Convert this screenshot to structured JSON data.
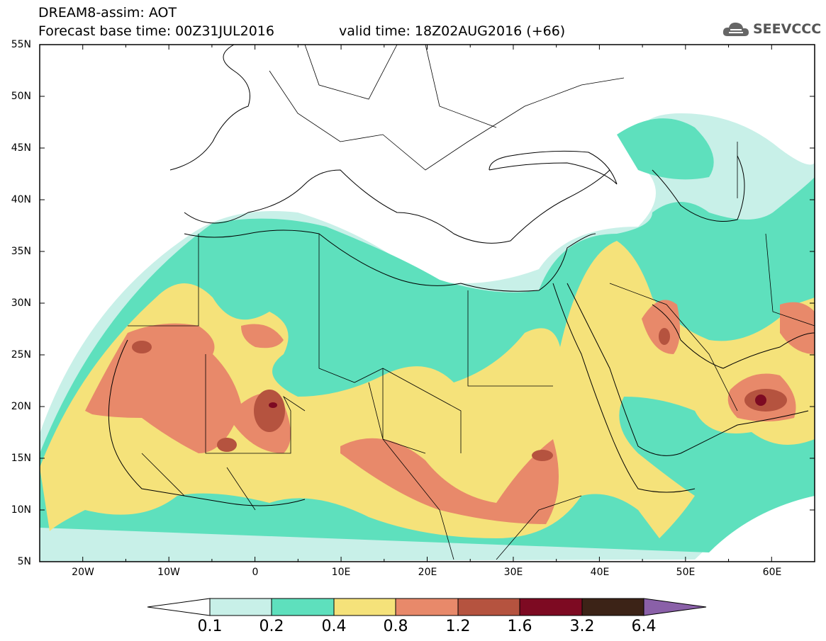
{
  "title_line1": "DREAM8-assim: AOT",
  "title_line2": "Forecast base time: 00Z31JUL2016",
  "title_valid": "valid time: 18Z02AUG2016 (+66)",
  "logo_text": "SEEVCCC",
  "map": {
    "lat_labels": [
      "55N",
      "50N",
      "45N",
      "40N",
      "35N",
      "30N",
      "25N",
      "20N",
      "15N",
      "10N",
      "5N"
    ],
    "lon_labels": [
      "20W",
      "10W",
      "0",
      "10E",
      "20E",
      "30E",
      "40E",
      "50E",
      "60E"
    ],
    "lon_range": [
      -25,
      65
    ],
    "lat_range": [
      5,
      55
    ]
  },
  "colorbar": {
    "thresholds": [
      "0.1",
      "0.2",
      "0.4",
      "0.8",
      "1.2",
      "1.6",
      "3.2",
      "6.4"
    ],
    "colors": [
      "#ffffff",
      "#c8f0e8",
      "#5ee0bd",
      "#f5e27a",
      "#e8896a",
      "#b5533f",
      "#7d0a22",
      "#3c2317",
      "#8a60a8"
    ]
  }
}
